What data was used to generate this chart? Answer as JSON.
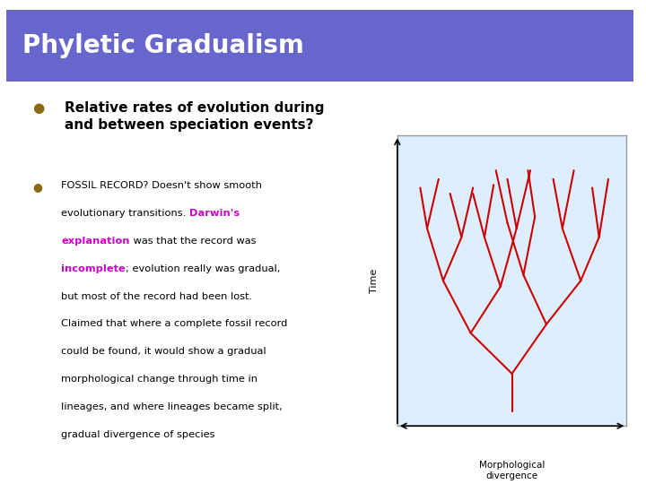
{
  "title": "Phyletic Gradualism",
  "title_bg_color": "#6666cc",
  "title_text_color": "#ffffff",
  "slide_bg_color": "#ffffff",
  "border_color": "#6699aa",
  "bullet1_bold": "Relative rates of evolution during\nand between speciation events?",
  "darwin_color": "#cc00cc",
  "incomplete_color": "#cc00cc",
  "bullet_color": "#8B6914",
  "diagram_bg_color": "#ddeeff",
  "diagram_border_color": "#999999",
  "tree_color": "#cc0000",
  "time_label": "Time",
  "xaxis_label": "Morphological\ndivergence",
  "text_lines": [
    [
      [
        "FOSSIL RECORD? Doesn't show smooth",
        "black",
        false
      ]
    ],
    [
      [
        "evolutionary transitions. ",
        "black",
        false
      ],
      [
        "Darwin's",
        "#cc00cc",
        true
      ]
    ],
    [
      [
        "explanation",
        "#cc00cc",
        true
      ],
      [
        " was that the record was",
        "black",
        false
      ]
    ],
    [
      [
        "incomplete",
        "#cc00cc",
        true
      ],
      [
        "; evolution really was gradual,",
        "black",
        false
      ]
    ],
    [
      [
        "but most of the record had been lost.",
        "black",
        false
      ]
    ],
    [
      [
        "Claimed that where a complete fossil record",
        "black",
        false
      ]
    ],
    [
      [
        "could be found, it would show a gradual",
        "black",
        false
      ]
    ],
    [
      [
        "morphological change through time in",
        "black",
        false
      ]
    ],
    [
      [
        "lineages, and where lineages became split,",
        "black",
        false
      ]
    ],
    [
      [
        "gradual divergence of species",
        "black",
        false
      ]
    ]
  ]
}
